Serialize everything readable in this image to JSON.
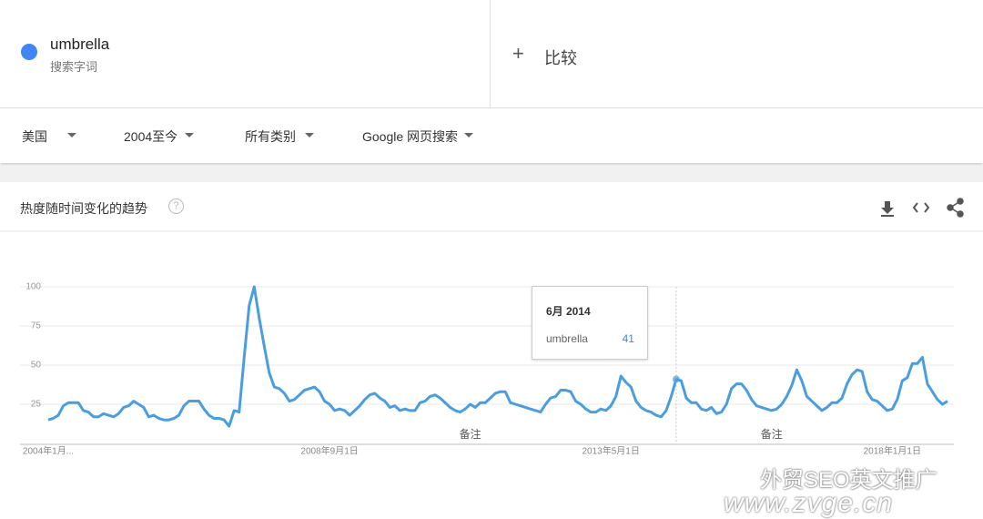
{
  "search": {
    "term": "umbrella",
    "caption": "搜索字词",
    "compare": "比较"
  },
  "filters": [
    "美国",
    "2004至今",
    "所有类别",
    "Google 网页搜索"
  ],
  "card_title": "热度随时间变化的趋势",
  "chart_data": {
    "type": "line",
    "x": [
      "2004-01-01",
      "2004-02-01",
      "2004-03-01",
      "2004-04-01",
      "2004-05-01",
      "2004-06-01",
      "2004-07-01",
      "2004-08-01",
      "2004-09-01",
      "2004-10-01",
      "2004-11-01",
      "2004-12-01",
      "2005-01-01",
      "2005-02-01",
      "2005-03-01",
      "2005-04-01",
      "2005-05-01",
      "2005-06-01",
      "2005-07-01",
      "2005-08-01",
      "2005-09-01",
      "2005-10-01",
      "2005-11-01",
      "2005-12-01",
      "2006-01-01",
      "2006-02-01",
      "2006-03-01",
      "2006-04-01",
      "2006-05-01",
      "2006-06-01",
      "2006-07-01",
      "2006-08-01",
      "2006-09-01",
      "2006-10-01",
      "2006-11-01",
      "2006-12-01",
      "2007-01-01",
      "2007-02-01",
      "2007-03-01",
      "2007-04-01",
      "2007-05-01",
      "2007-06-01",
      "2007-07-01",
      "2007-08-01",
      "2007-09-01",
      "2007-10-01",
      "2007-11-01",
      "2007-12-01",
      "2008-01-01",
      "2008-02-01",
      "2008-03-01",
      "2008-04-01",
      "2008-05-01",
      "2008-06-01",
      "2008-07-01",
      "2008-08-01",
      "2008-09-01",
      "2008-10-01",
      "2008-11-01",
      "2008-12-01",
      "2009-01-01",
      "2009-02-01",
      "2009-03-01",
      "2009-04-01",
      "2009-05-01",
      "2009-06-01",
      "2009-07-01",
      "2009-08-01",
      "2009-09-01",
      "2009-10-01",
      "2009-11-01",
      "2009-12-01",
      "2010-01-01",
      "2010-02-01",
      "2010-03-01",
      "2010-04-01",
      "2010-05-01",
      "2010-06-01",
      "2010-07-01",
      "2010-08-01",
      "2010-09-01",
      "2010-10-01",
      "2010-11-01",
      "2010-12-01",
      "2011-01-01",
      "2011-02-01",
      "2011-03-01",
      "2011-04-01",
      "2011-05-01",
      "2011-06-01",
      "2011-07-01",
      "2011-08-01",
      "2011-09-01",
      "2011-10-01",
      "2011-11-01",
      "2011-12-01",
      "2012-01-01",
      "2012-02-01",
      "2012-03-01",
      "2012-04-01",
      "2012-05-01",
      "2012-06-01",
      "2012-07-01",
      "2012-08-01",
      "2012-09-01",
      "2012-10-01",
      "2012-11-01",
      "2012-12-01",
      "2013-01-01",
      "2013-02-01",
      "2013-03-01",
      "2013-04-01",
      "2013-05-01",
      "2013-06-01",
      "2013-07-01",
      "2013-08-01",
      "2013-09-01",
      "2013-10-01",
      "2013-11-01",
      "2013-12-01",
      "2014-01-01",
      "2014-02-01",
      "2014-03-01",
      "2014-04-01",
      "2014-05-01",
      "2014-06-01",
      "2014-07-01",
      "2014-08-01",
      "2014-09-01",
      "2014-10-01",
      "2014-11-01",
      "2014-12-01",
      "2015-01-01",
      "2015-02-01",
      "2015-03-01",
      "2015-04-01",
      "2015-05-01",
      "2015-06-01",
      "2015-07-01",
      "2015-08-01",
      "2015-09-01",
      "2015-10-01",
      "2015-11-01",
      "2015-12-01",
      "2016-01-01",
      "2016-02-01",
      "2016-03-01",
      "2016-04-01",
      "2016-05-01",
      "2016-06-01",
      "2016-07-01",
      "2016-08-01",
      "2016-09-01",
      "2016-10-01",
      "2016-11-01",
      "2016-12-01",
      "2017-01-01",
      "2017-02-01",
      "2017-03-01",
      "2017-04-01",
      "2017-05-01",
      "2017-06-01",
      "2017-07-01",
      "2017-08-01",
      "2017-09-01",
      "2017-10-01",
      "2017-11-01",
      "2017-12-01",
      "2018-01-01",
      "2018-02-01",
      "2018-03-01",
      "2018-04-01",
      "2018-05-01",
      "2018-06-01",
      "2018-07-01",
      "2018-08-01",
      "2018-09-01",
      "2018-10-01",
      "2018-11-01",
      "2018-12-01"
    ],
    "series": [
      {
        "name": "umbrella",
        "color": "#4a9ee0",
        "values": [
          15,
          16,
          18,
          24,
          26,
          26,
          26,
          21,
          20,
          17,
          17,
          19,
          18,
          17,
          19,
          23,
          24,
          27,
          25,
          23,
          17,
          18,
          16,
          15,
          15,
          16,
          18,
          24,
          27,
          27,
          27,
          22,
          18,
          16,
          16,
          15,
          11,
          21,
          20,
          55,
          88,
          100,
          80,
          62,
          45,
          36,
          35,
          32,
          27,
          28,
          31,
          34,
          35,
          36,
          33,
          27,
          25,
          21,
          22,
          21,
          18,
          21,
          24,
          28,
          31,
          32,
          29,
          27,
          23,
          24,
          21,
          22,
          21,
          21,
          26,
          27,
          30,
          31,
          29,
          26,
          23,
          21,
          20,
          22,
          25,
          23,
          26,
          26,
          29,
          32,
          33,
          33,
          26,
          25,
          24,
          23,
          22,
          21,
          20,
          25,
          29,
          30,
          34,
          34,
          33,
          27,
          25,
          22,
          20,
          20,
          22,
          21,
          24,
          30,
          43,
          39,
          36,
          27,
          23,
          21,
          20,
          18,
          17,
          21,
          30,
          41,
          40,
          29,
          26,
          26,
          22,
          21,
          23,
          19,
          20,
          25,
          35,
          38,
          38,
          34,
          28,
          24,
          23,
          22,
          21,
          22,
          25,
          30,
          37,
          47,
          40,
          30,
          27,
          24,
          21,
          23,
          26,
          26,
          29,
          38,
          44,
          47,
          46,
          33,
          28,
          27,
          24,
          21,
          22,
          28,
          40,
          42,
          51,
          51,
          55,
          38,
          33,
          28,
          25,
          27
        ]
      }
    ],
    "xlim": [
      "2004-01-01",
      "2018-12-01"
    ],
    "xticks": [
      {
        "value": "2004-01-01",
        "label": "2004年1月..."
      },
      {
        "value": "2008-09-01",
        "label": "2008年9月1日"
      },
      {
        "value": "2013-05-01",
        "label": "2013年5月1日"
      },
      {
        "value": "2018-01-01",
        "label": "2018年1月1日"
      }
    ],
    "ylim": [
      0,
      100
    ],
    "yticks": [
      25,
      50,
      75,
      100
    ],
    "grid": true,
    "annotations": [
      {
        "text": "备注",
        "x": "2011-01-01"
      },
      {
        "text": "备注",
        "x": "2016-01-01"
      }
    ],
    "tooltip": {
      "title": "6月 2014",
      "x": "2014-06-01"
    }
  },
  "watermark": {
    "line1": "外贸SEO英文推广",
    "line2": "www.zvge.cn"
  }
}
